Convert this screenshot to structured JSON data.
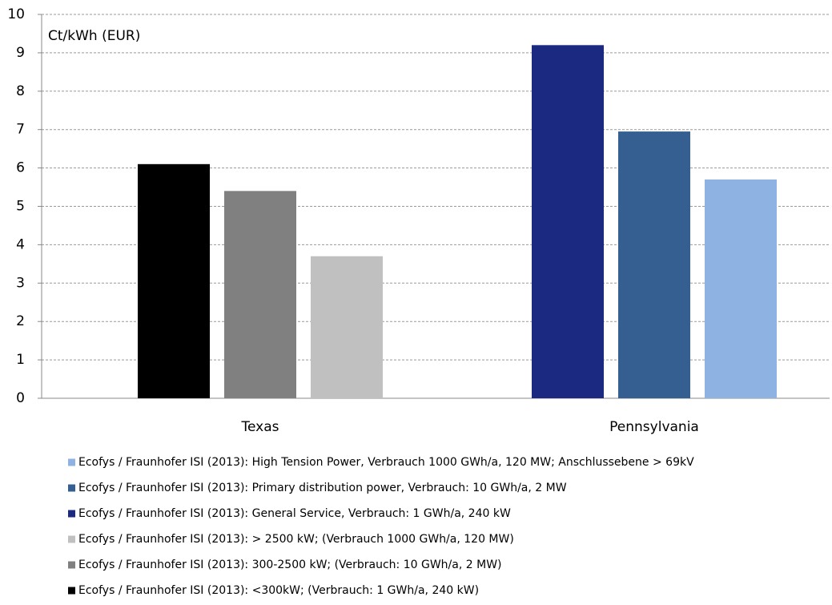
{
  "chart_data": {
    "type": "bar",
    "y_label": "Ct/kWh (EUR)",
    "categories": [
      "Texas",
      "Pennsylvania"
    ],
    "series": [
      {
        "name": "Ecofys / Fraunhofer ISI (2013): <300kW; (Verbrauch: 1 GWh/a, 240 kW)",
        "color": "#000000",
        "values": [
          6.1,
          null
        ]
      },
      {
        "name": "Ecofys / Fraunhofer ISI (2013): 300-2500 kW; (Verbrauch: 10 GWh/a, 2 MW)",
        "color": "#808080",
        "values": [
          5.4,
          null
        ]
      },
      {
        "name": "Ecofys / Fraunhofer ISI (2013): > 2500 kW; (Verbrauch 1000 GWh/a, 120 MW)",
        "color": "#c0c0c0",
        "values": [
          3.7,
          null
        ]
      },
      {
        "name": "Ecofys / Fraunhofer ISI (2013): General Service, Verbrauch: 1 GWh/a, 240 kW",
        "color": "#1b2a80",
        "values": [
          null,
          9.2
        ]
      },
      {
        "name": "Ecofys / Fraunhofer ISI (2013): Primary distribution power, Verbrauch: 10 GWh/a, 2 MW",
        "color": "#355f91",
        "values": [
          null,
          6.95
        ]
      },
      {
        "name": "Ecofys / Fraunhofer ISI (2013): High Tension Power, Verbrauch 1000 GWh/a, 120 MW; Anschlussebene > 69kV",
        "color": "#8eb3e3",
        "values": [
          null,
          5.7
        ]
      }
    ],
    "ylim": [
      0,
      10
    ],
    "yticks": [
      0,
      1,
      2,
      3,
      4,
      5,
      6,
      7,
      8,
      9,
      10
    ],
    "grid": true
  }
}
